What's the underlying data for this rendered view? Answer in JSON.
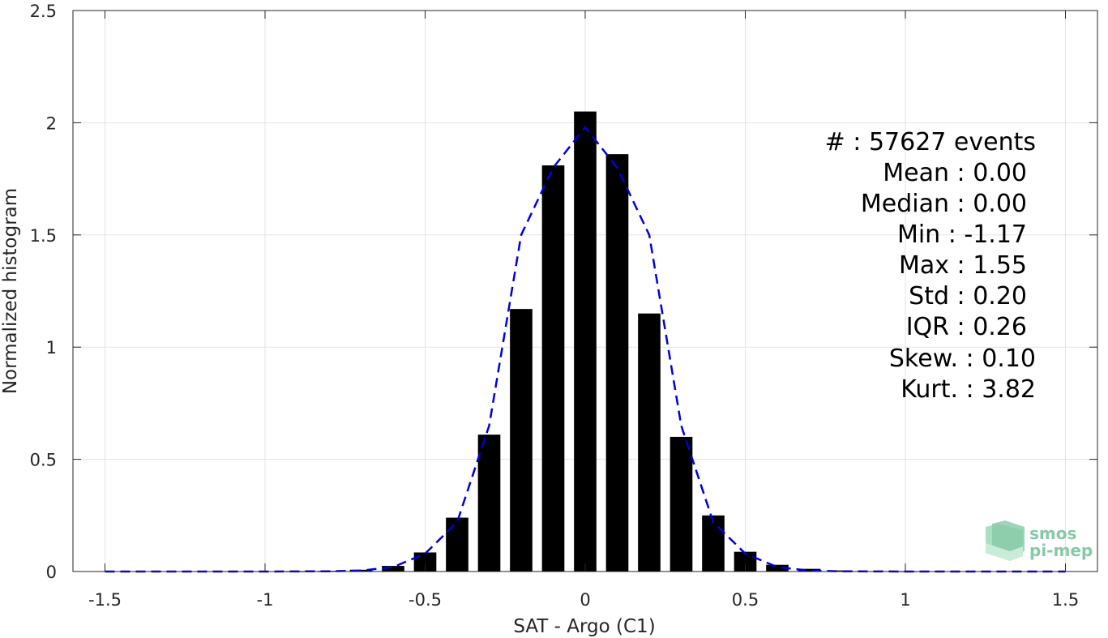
{
  "chart_data": {
    "type": "bar",
    "xlabel": "SAT - Argo (C1)",
    "ylabel": "Normalized histogram",
    "xlim": [
      -1.6,
      1.6
    ],
    "ylim": [
      0,
      2.5
    ],
    "grid": true,
    "xticks": [
      -1.5,
      -1,
      -0.5,
      0,
      0.5,
      1,
      1.5
    ],
    "xtick_labels": [
      "-1.5",
      "-1",
      "-0.5",
      "0",
      "0.5",
      "1",
      "1.5"
    ],
    "yticks": [
      0,
      0.5,
      1,
      1.5,
      2,
      2.5
    ],
    "ytick_labels": [
      "0",
      "0.5",
      "1",
      "1.5",
      "2",
      "2.5"
    ],
    "bar_width": 0.07,
    "bars": {
      "x": [
        -1.5,
        -1.4,
        -1.3,
        -1.2,
        -1.1,
        -1.0,
        -0.9,
        -0.8,
        -0.7,
        -0.6,
        -0.5,
        -0.4,
        -0.3,
        -0.2,
        -0.1,
        0.0,
        0.1,
        0.2,
        0.3,
        0.4,
        0.5,
        0.6,
        0.7,
        0.8,
        0.9,
        1.0,
        1.1,
        1.2,
        1.3,
        1.4,
        1.5
      ],
      "values": [
        0,
        0,
        0,
        0,
        0,
        0,
        0.001,
        0.003,
        0.008,
        0.025,
        0.085,
        0.24,
        0.61,
        1.17,
        1.81,
        2.05,
        1.86,
        1.15,
        0.6,
        0.25,
        0.088,
        0.03,
        0.012,
        0.005,
        0.002,
        0.001,
        0,
        0,
        0,
        0,
        0
      ]
    },
    "fit_curve": {
      "style": "dashed",
      "color": "#0000dd",
      "x": [
        -1.5,
        -1.0,
        -0.8,
        -0.7,
        -0.6,
        -0.5,
        -0.4,
        -0.3,
        -0.2,
        -0.1,
        0.0,
        0.1,
        0.2,
        0.3,
        0.4,
        0.5,
        0.6,
        0.7,
        0.8,
        1.0,
        1.5
      ],
      "y": [
        0,
        0,
        0.001,
        0.004,
        0.02,
        0.08,
        0.22,
        0.65,
        1.5,
        1.8,
        1.98,
        1.8,
        1.5,
        0.65,
        0.22,
        0.08,
        0.02,
        0.004,
        0.001,
        0,
        0
      ]
    },
    "bar_color": "#000000",
    "annotations": [
      "#  : 57627 events",
      "Mean : 0.00",
      "Median : 0.00",
      "Min : -1.17",
      "Max : 1.55",
      "Std : 0.20",
      "IQR : 0.26",
      "Skew. : 0.10",
      "Kurt. : 3.82"
    ]
  },
  "logo": {
    "line1": "smos",
    "line2": "pi-mep",
    "color": "#5fb88a"
  }
}
